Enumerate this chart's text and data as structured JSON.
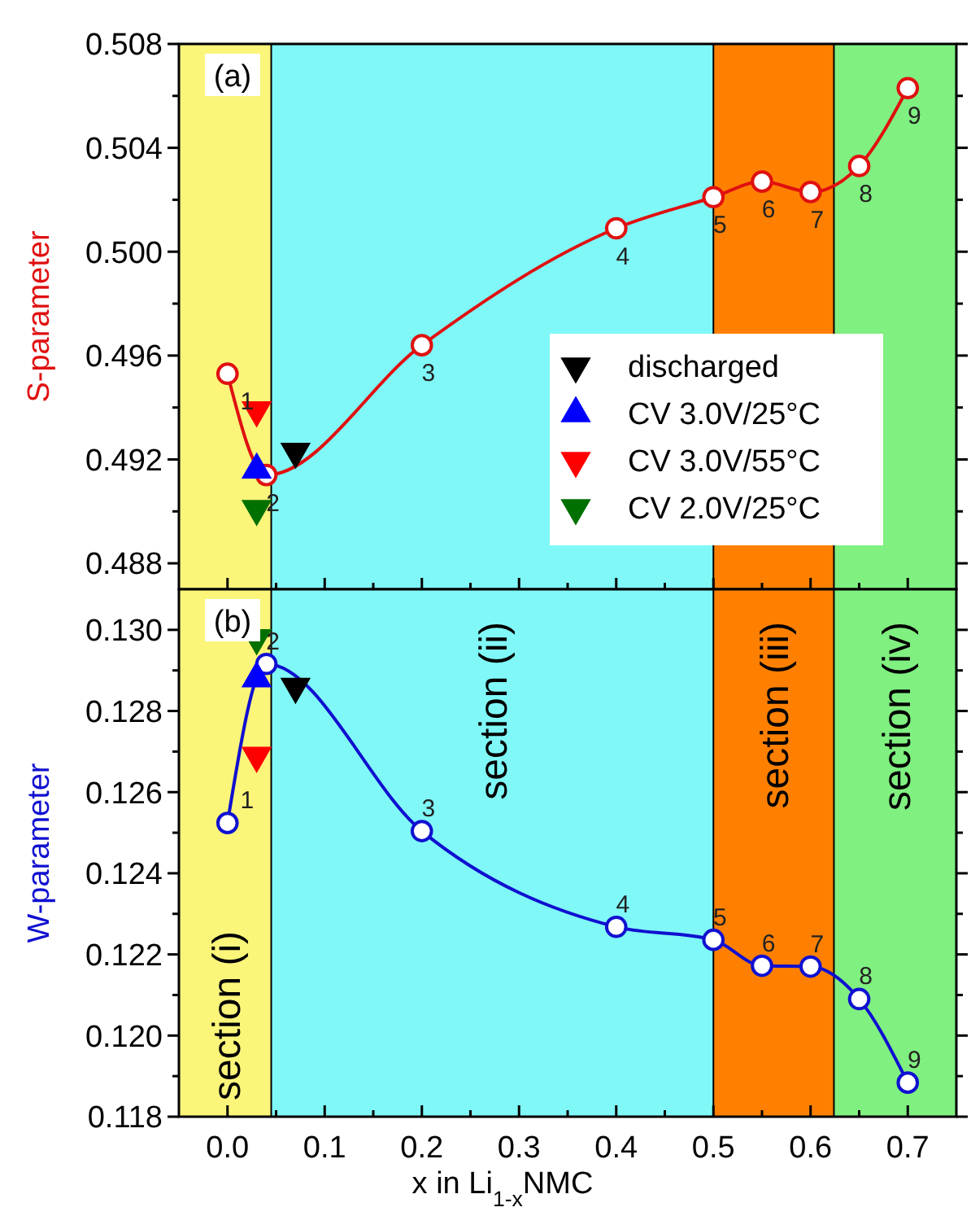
{
  "chart_data": [
    {
      "type": "line",
      "xlim": [
        -0.05,
        0.75
      ],
      "xticks": [
        0,
        {
          "value": 0.05,
          "label": null
        },
        0.1,
        {
          "value": 0.15,
          "label": null
        },
        0.2,
        {
          "value": 0.25,
          "label": null
        },
        0.3,
        {
          "value": 0.35,
          "label": null
        },
        0.4,
        {
          "value": 0.45,
          "label": null
        },
        0.5,
        {
          "value": 0.55,
          "label": null
        },
        0.6,
        {
          "value": 0.65,
          "label": null
        },
        0.7
      ],
      "ylim": [
        0.487,
        0.508
      ],
      "yticks": [
        0.488,
        {
          "value": 0.49,
          "label": null
        },
        0.492,
        {
          "value": 0.494,
          "label": null
        },
        0.496,
        {
          "value": 0.498,
          "label": null
        },
        "0.500",
        {
          "value": 0.502,
          "label": null
        },
        0.504,
        {
          "value": 0.506,
          "label": null
        },
        0.508
      ],
      "ylabel": "S-parameter",
      "tick_labels": "y",
      "legend": "right",
      "bands": [
        {
          "axis": "x",
          "from": -0.05,
          "to": 0.045,
          "color": "#fbf57a"
        },
        {
          "axis": "x",
          "from": 0.045,
          "to": 0.5,
          "color": "#80f8f8"
        },
        {
          "axis": "x",
          "from": 0.5,
          "to": 0.624,
          "color": "#ff8000"
        },
        {
          "axis": "x",
          "from": 0.624,
          "to": 0.75,
          "color": "#80f080"
        }
      ],
      "annotations": [
        "(a)",
        {
          "text": "1",
          "x": 0,
          "y": 0.4953
        },
        {
          "text": "2",
          "x": 0.04,
          "y": 0.4914
        },
        {
          "text": "3",
          "x": 0.2,
          "y": 0.4964
        },
        {
          "text": "4",
          "x": 0.4,
          "y": 0.5009
        },
        {
          "text": "5",
          "x": 0.5,
          "y": 0.5021
        },
        {
          "text": "6",
          "x": 0.55,
          "y": 0.5027
        },
        {
          "text": "7",
          "x": 0.6,
          "y": 0.5023
        },
        {
          "text": "8",
          "x": 0.65,
          "y": 0.5033
        },
        {
          "text": "9",
          "x": 0.7,
          "y": 0.5063
        }
      ],
      "series": [
        {
          "color": "#e01010",
          "marker": "circle",
          "x": [
            0,
            0.04,
            0.2,
            0.4,
            0.5,
            0.55,
            0.6,
            0.65,
            0.7
          ],
          "values": [
            0.4953,
            0.4914,
            0.4964,
            0.5009,
            0.5021,
            0.5027,
            0.5023,
            0.5033,
            0.5063
          ]
        },
        {
          "type": "scatter",
          "name": "discharged",
          "color": "#000000",
          "marker": "triangle-down",
          "x": [
            0.07
          ],
          "values": [
            0.4923
          ]
        },
        {
          "type": "scatter",
          "name": "CV 3.0V/25°C",
          "color": "#0000ff",
          "marker": "triangle",
          "x": [
            0.03
          ],
          "values": [
            0.4916
          ]
        },
        {
          "type": "scatter",
          "name": "CV 3.0V/55°C",
          "color": "#ff0000",
          "marker": "triangle-down",
          "x": [
            0.03
          ],
          "values": [
            0.4939
          ]
        },
        {
          "type": "scatter",
          "name": "CV 2.0V/25°C",
          "color": "#007000",
          "marker": "triangle-down",
          "x": [
            0.03
          ],
          "values": [
            0.4901
          ]
        }
      ]
    },
    {
      "type": "line",
      "xlim": [
        -0.05,
        0.75
      ],
      "xticks": [
        {
          "value": 0,
          "label": "0.0"
        },
        {
          "value": 0.05,
          "label": null
        },
        0.1,
        {
          "value": 0.15,
          "label": null
        },
        0.2,
        {
          "value": 0.25,
          "label": null
        },
        0.3,
        {
          "value": 0.35,
          "label": null
        },
        0.4,
        {
          "value": 0.45,
          "label": null
        },
        0.5,
        {
          "value": 0.55,
          "label": null
        },
        0.6,
        {
          "value": 0.65,
          "label": null
        },
        0.7
      ],
      "ylim": [
        0.118,
        0.131
      ],
      "yticks": [
        0.118,
        {
          "value": 0.119,
          "label": null
        },
        "0.120",
        {
          "value": 0.121,
          "label": null
        },
        0.122,
        {
          "value": 0.123,
          "label": null
        },
        0.124,
        {
          "value": 0.125,
          "label": null
        },
        0.126,
        {
          "value": 0.127,
          "label": null
        },
        0.128,
        {
          "value": 0.129,
          "label": null
        },
        "0.130"
      ],
      "xlabel": "x in Li$_{1-x}$NMC",
      "ylabel": "W-parameter",
      "bands": [
        {
          "axis": "x",
          "from": -0.05,
          "to": 0.045,
          "color": "#fbf57a",
          "label": "section (i)"
        },
        {
          "axis": "x",
          "from": 0.045,
          "to": 0.5,
          "color": "#80f8f8",
          "label": "section (ii)"
        },
        {
          "axis": "x",
          "from": 0.5,
          "to": 0.624,
          "color": "#ff8000",
          "label": "section (iii)"
        },
        {
          "axis": "x",
          "from": 0.624,
          "to": 0.75,
          "color": "#80f080",
          "label": "section (iv)"
        }
      ],
      "annotations": [
        "(b)",
        {
          "text": "1",
          "x": 0,
          "y": 0.12524
        },
        {
          "text": "2",
          "x": 0.04,
          "y": 0.12916
        },
        {
          "text": "3",
          "x": 0.2,
          "y": 0.12504
        },
        {
          "text": "4",
          "x": 0.4,
          "y": 0.12268
        },
        {
          "text": "5",
          "x": 0.5,
          "y": 0.12236
        },
        {
          "text": "6",
          "x": 0.55,
          "y": 0.12172
        },
        {
          "text": "7",
          "x": 0.6,
          "y": 0.1217
        },
        {
          "text": "8",
          "x": 0.65,
          "y": 0.1209
        },
        {
          "text": "9",
          "x": 0.7,
          "y": 0.11884
        }
      ],
      "series": [
        {
          "color": "#1010d0",
          "marker": "circle",
          "x": [
            0,
            0.04,
            0.2,
            0.4,
            0.5,
            0.55,
            0.6,
            0.65,
            0.7
          ],
          "values": [
            0.12524,
            0.12916,
            0.12504,
            0.12268,
            0.12236,
            0.12172,
            0.1217,
            0.1209,
            0.11884
          ]
        },
        {
          "type": "scatter",
          "color": "#000000",
          "marker": "triangle-down",
          "x": [
            0.07
          ],
          "values": [
            0.1286
          ]
        },
        {
          "type": "scatter",
          "color": "#0000ff",
          "marker": "triangle",
          "x": [
            0.03
          ],
          "values": [
            0.1288
          ]
        },
        {
          "type": "scatter",
          "color": "#ff0000",
          "marker": "triangle-down",
          "x": [
            0.03
          ],
          "values": [
            0.1269
          ]
        },
        {
          "type": "scatter",
          "color": "#007000",
          "marker": "triangle-down",
          "x": [
            0.03
          ],
          "values": [
            0.1298
          ]
        }
      ]
    }
  ]
}
